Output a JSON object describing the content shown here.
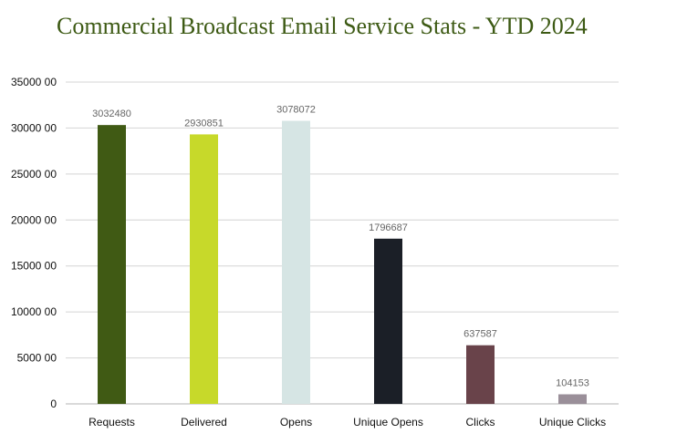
{
  "chart_data": {
    "type": "bar",
    "title": "Commercial Broadcast Email Service Stats - YTD 2024",
    "categories": [
      "Requests",
      "Delivered",
      "Opens",
      "Unique Opens",
      "Clicks",
      "Unique Clicks"
    ],
    "values": [
      3032480,
      2930851,
      3078072,
      1796687,
      637587,
      104153
    ],
    "data_labels": [
      "3032480",
      "2930851",
      "3078072",
      "1796687",
      "637587",
      "104153"
    ],
    "bar_colors": [
      "#405a14",
      "#c7d92a",
      "#d6e5e4",
      "#1b1f27",
      "#69434a",
      "#9a8f99"
    ],
    "ylim": [
      0,
      3500000
    ],
    "yticks": [
      0,
      500000,
      1000000,
      1500000,
      2000000,
      2500000,
      3000000,
      3500000
    ],
    "ytick_labels": [
      "0",
      "5000 00",
      "10000 00",
      "15000 00",
      "20000 00",
      "25000 00",
      "30000 00",
      "35000 00"
    ],
    "grid": true,
    "xlabel": "",
    "ylabel": ""
  }
}
